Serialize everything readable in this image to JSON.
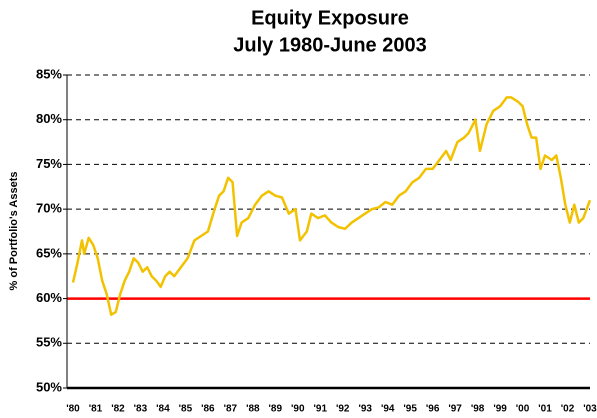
{
  "chart_data": {
    "type": "line",
    "title": "Equity Exposure",
    "subtitle": "July 1980-June 2003",
    "y_label": "% of Portfolio's Assets",
    "x": [
      1980.5,
      1980.7,
      1980.9,
      1981.0,
      1981.2,
      1981.4,
      1981.6,
      1981.8,
      1982.0,
      1982.2,
      1982.4,
      1982.6,
      1982.8,
      1983.0,
      1983.2,
      1983.4,
      1983.6,
      1983.8,
      1984.0,
      1984.2,
      1984.4,
      1984.6,
      1984.8,
      1985.0,
      1985.3,
      1985.6,
      1985.9,
      1986.2,
      1986.5,
      1986.8,
      1987.0,
      1987.2,
      1987.4,
      1987.6,
      1987.8,
      1988.0,
      1988.3,
      1988.6,
      1988.9,
      1989.2,
      1989.5,
      1989.8,
      1990.1,
      1990.4,
      1990.6,
      1990.9,
      1991.1,
      1991.4,
      1991.7,
      1992.0,
      1992.3,
      1992.6,
      1992.9,
      1993.2,
      1993.5,
      1993.8,
      1994.1,
      1994.4,
      1994.7,
      1995.0,
      1995.3,
      1995.6,
      1995.9,
      1996.2,
      1996.5,
      1996.8,
      1997.1,
      1997.3,
      1997.6,
      1997.9,
      1998.1,
      1998.4,
      1998.6,
      1998.9,
      1999.2,
      1999.5,
      1999.8,
      2000.0,
      2000.3,
      2000.5,
      2000.7,
      2000.9,
      2001.1,
      2001.3,
      2001.5,
      2001.8,
      2002.0,
      2002.2,
      2002.4,
      2002.6,
      2002.8,
      2003.0,
      2003.2,
      2003.5
    ],
    "series": [
      {
        "color": "#f2c200",
        "values": [
          61.8,
          64,
          66.5,
          65,
          66.8,
          66,
          64.5,
          62,
          60.5,
          58.2,
          58.5,
          60.5,
          62,
          63,
          64.5,
          64,
          63,
          63.5,
          62.5,
          62,
          61.3,
          62.5,
          63,
          62.5,
          63.5,
          64.5,
          66.5,
          67,
          67.5,
          70,
          71.5,
          72,
          73.5,
          73,
          67,
          68.5,
          69,
          70.5,
          71.5,
          72,
          71.5,
          71.3,
          69.5,
          70,
          66.5,
          67.5,
          69.5,
          69,
          69.3,
          68.5,
          68,
          67.8,
          68.5,
          69,
          69.5,
          70,
          70.2,
          70.8,
          70.5,
          71.5,
          72,
          73,
          73.5,
          74.5,
          74.5,
          75.5,
          76.5,
          75.5,
          77.5,
          78,
          78.5,
          80,
          76.5,
          79.5,
          81,
          81.5,
          82.5,
          82.5,
          82,
          81.5,
          79.5,
          78,
          78,
          74.5,
          76,
          75.5,
          76,
          73.5,
          70.5,
          68.5,
          70.5,
          68.5,
          69,
          71
        ]
      }
    ],
    "reference_line": {
      "value": 60,
      "color": "#ff0000"
    },
    "xlim": [
      1980.5,
      2003.5
    ],
    "xticks": [
      {
        "value": 1980.5,
        "label": "'80"
      },
      {
        "value": 1981.5,
        "label": "'81"
      },
      {
        "value": 1982.5,
        "label": "'82"
      },
      {
        "value": 1983.5,
        "label": "'83"
      },
      {
        "value": 1984.5,
        "label": "'84"
      },
      {
        "value": 1985.5,
        "label": "'85"
      },
      {
        "value": 1986.5,
        "label": "'86"
      },
      {
        "value": 1987.5,
        "label": "'87"
      },
      {
        "value": 1988.5,
        "label": "'88"
      },
      {
        "value": 1989.5,
        "label": "'89"
      },
      {
        "value": 1990.5,
        "label": "'90"
      },
      {
        "value": 1991.5,
        "label": "'91"
      },
      {
        "value": 1992.5,
        "label": "'92"
      },
      {
        "value": 1993.5,
        "label": "'93"
      },
      {
        "value": 1994.5,
        "label": "'94"
      },
      {
        "value": 1995.5,
        "label": "'95"
      },
      {
        "value": 1996.5,
        "label": "'96"
      },
      {
        "value": 1997.5,
        "label": "'97"
      },
      {
        "value": 1998.5,
        "label": "'98"
      },
      {
        "value": 1999.5,
        "label": "'99"
      },
      {
        "value": 2000.5,
        "label": "'00"
      },
      {
        "value": 2001.5,
        "label": "'01"
      },
      {
        "value": 2002.5,
        "label": "'02"
      },
      {
        "value": 2003.5,
        "label": "'03"
      }
    ],
    "ylim": [
      50,
      85
    ],
    "yticks": [
      {
        "value": 50,
        "label": "50%"
      },
      {
        "value": 55,
        "label": "55%"
      },
      {
        "value": 60,
        "label": "60%"
      },
      {
        "value": 65,
        "label": "65%"
      },
      {
        "value": 70,
        "label": "70%"
      },
      {
        "value": 75,
        "label": "75%"
      },
      {
        "value": 80,
        "label": "80%"
      },
      {
        "value": 85,
        "label": "85%"
      }
    ],
    "grid": true
  }
}
